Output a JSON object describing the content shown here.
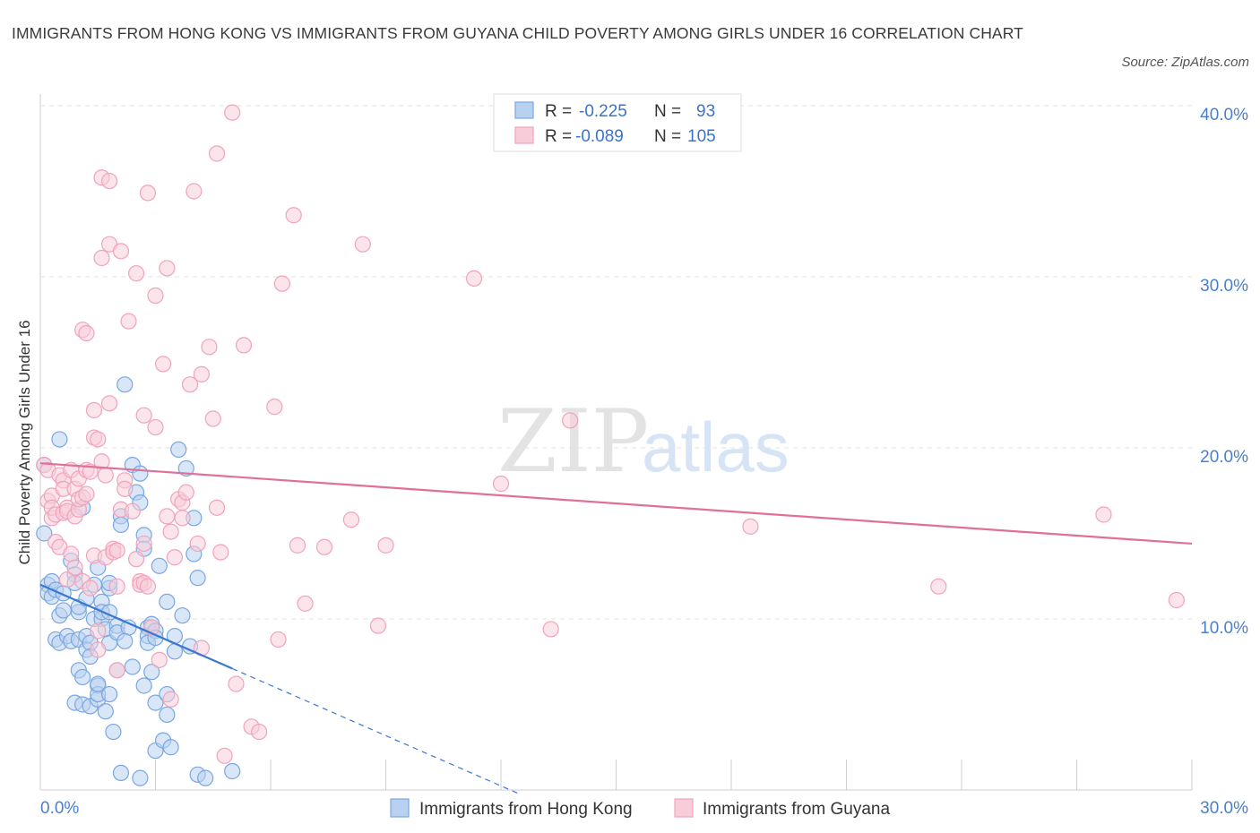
{
  "title": "IMMIGRANTS FROM HONG KONG VS IMMIGRANTS FROM GUYANA CHILD POVERTY AMONG GIRLS UNDER 16 CORRELATION CHART",
  "source": "Source: ZipAtlas.com",
  "watermark": {
    "zip": "ZIP",
    "atlas": "atlas"
  },
  "chart_data": {
    "type": "scatter",
    "title": "IMMIGRANTS FROM HONG KONG VS IMMIGRANTS FROM GUYANA CHILD POVERTY AMONG GIRLS UNDER 16 CORRELATION CHART",
    "xlabel": "",
    "ylabel": "Child Poverty Among Girls Under 16",
    "xlim": [
      0,
      30
    ],
    "ylim": [
      0,
      40
    ],
    "x_tick_labels": [
      {
        "value": 0,
        "label": "0.0%"
      },
      {
        "value": 30,
        "label": "30.0%"
      }
    ],
    "y_tick_labels": [
      {
        "value": 10,
        "label": "10.0%"
      },
      {
        "value": 20,
        "label": "20.0%"
      },
      {
        "value": 30,
        "label": "30.0%"
      },
      {
        "value": 40,
        "label": "40.0%"
      }
    ],
    "grid": true,
    "legend_placement": "bottom",
    "stats_box": [
      {
        "r_label": "R =",
        "r_value": "-0.225",
        "n_label": "N =",
        "n_value": "93"
      },
      {
        "r_label": "R =",
        "r_value": "-0.089",
        "n_label": "N =",
        "n_value": "105"
      }
    ],
    "series": [
      {
        "name": "Immigrants from Hong Kong",
        "color": "#7aa7e0",
        "fill": "#b9d1f1",
        "line_color": "#3a78d0",
        "trend": {
          "x0": 0,
          "y0": 12.0,
          "x1": 5.0,
          "y1": 7.1,
          "dash_to_x": 12.5
        },
        "points": [
          [
            0.1,
            19.0
          ],
          [
            0.1,
            15.0
          ],
          [
            0.2,
            12.0
          ],
          [
            0.2,
            11.5
          ],
          [
            0.3,
            11.3
          ],
          [
            0.3,
            12.2
          ],
          [
            0.4,
            8.8
          ],
          [
            0.4,
            11.7
          ],
          [
            0.5,
            20.5
          ],
          [
            0.5,
            10.2
          ],
          [
            0.6,
            10.5
          ],
          [
            0.6,
            11.5
          ],
          [
            0.5,
            8.6
          ],
          [
            0.7,
            9.0
          ],
          [
            0.8,
            13.4
          ],
          [
            0.8,
            8.7
          ],
          [
            0.9,
            12.6
          ],
          [
            0.9,
            12.1
          ],
          [
            1.0,
            10.4
          ],
          [
            1.0,
            10.7
          ],
          [
            0.9,
            5.1
          ],
          [
            1.0,
            7.0
          ],
          [
            1.0,
            8.8
          ],
          [
            1.1,
            16.5
          ],
          [
            1.2,
            11.2
          ],
          [
            1.2,
            9.0
          ],
          [
            1.1,
            6.6
          ],
          [
            1.1,
            5.0
          ],
          [
            1.2,
            8.2
          ],
          [
            1.3,
            8.6
          ],
          [
            1.3,
            7.8
          ],
          [
            1.3,
            4.9
          ],
          [
            1.4,
            10.0
          ],
          [
            1.4,
            12.0
          ],
          [
            1.5,
            13.0
          ],
          [
            1.5,
            6.1
          ],
          [
            1.5,
            5.3
          ],
          [
            1.5,
            5.6
          ],
          [
            1.5,
            6.2
          ],
          [
            1.6,
            10.0
          ],
          [
            1.6,
            11.0
          ],
          [
            1.6,
            10.4
          ],
          [
            1.7,
            9.4
          ],
          [
            1.7,
            4.6
          ],
          [
            1.8,
            10.4
          ],
          [
            1.8,
            11.8
          ],
          [
            1.8,
            12.1
          ],
          [
            1.8,
            8.6
          ],
          [
            1.8,
            5.6
          ],
          [
            1.9,
            3.4
          ],
          [
            2.0,
            9.6
          ],
          [
            2.0,
            9.2
          ],
          [
            2.0,
            7.0
          ],
          [
            2.1,
            16.0
          ],
          [
            2.1,
            15.5
          ],
          [
            2.1,
            1.0
          ],
          [
            2.2,
            23.7
          ],
          [
            2.3,
            9.5
          ],
          [
            2.2,
            8.7
          ],
          [
            2.4,
            7.2
          ],
          [
            2.4,
            19.0
          ],
          [
            2.5,
            17.4
          ],
          [
            2.6,
            16.8
          ],
          [
            2.6,
            18.5
          ],
          [
            2.6,
            0.7
          ],
          [
            2.7,
            14.9
          ],
          [
            2.7,
            14.1
          ],
          [
            2.7,
            6.1
          ],
          [
            2.8,
            9.5
          ],
          [
            2.8,
            9.0
          ],
          [
            2.8,
            8.6
          ],
          [
            2.9,
            9.7
          ],
          [
            2.9,
            6.9
          ],
          [
            3.0,
            9.3
          ],
          [
            3.0,
            5.1
          ],
          [
            3.0,
            8.9
          ],
          [
            3.0,
            2.3
          ],
          [
            3.1,
            13.1
          ],
          [
            3.2,
            2.9
          ],
          [
            3.3,
            11.0
          ],
          [
            3.3,
            5.6
          ],
          [
            3.3,
            4.4
          ],
          [
            3.4,
            2.5
          ],
          [
            3.5,
            8.1
          ],
          [
            3.5,
            9.0
          ],
          [
            3.6,
            19.9
          ],
          [
            3.7,
            10.2
          ],
          [
            3.8,
            18.8
          ],
          [
            3.9,
            8.4
          ],
          [
            4.0,
            15.9
          ],
          [
            4.0,
            13.8
          ],
          [
            4.1,
            12.4
          ],
          [
            4.1,
            0.9
          ],
          [
            4.3,
            0.7
          ],
          [
            5.0,
            1.1
          ]
        ]
      },
      {
        "name": "Immigrants from Guyana",
        "color": "#f0a3bc",
        "fill": "#f8cdd9",
        "line_color": "#e0709a",
        "trend": {
          "x0": 0,
          "y0": 19.1,
          "x1": 30,
          "y1": 14.4
        },
        "points": [
          [
            0.1,
            19.0
          ],
          [
            0.2,
            18.7
          ],
          [
            0.2,
            16.9
          ],
          [
            0.3,
            17.2
          ],
          [
            0.3,
            15.9
          ],
          [
            0.3,
            16.5
          ],
          [
            0.4,
            16.1
          ],
          [
            0.4,
            14.5
          ],
          [
            0.5,
            14.2
          ],
          [
            0.5,
            18.4
          ],
          [
            0.6,
            18.1
          ],
          [
            0.6,
            17.6
          ],
          [
            0.6,
            16.2
          ],
          [
            0.7,
            16.5
          ],
          [
            0.7,
            16.3
          ],
          [
            0.7,
            12.3
          ],
          [
            0.8,
            18.7
          ],
          [
            0.8,
            13.8
          ],
          [
            0.9,
            17.6
          ],
          [
            0.9,
            16.0
          ],
          [
            0.9,
            13.0
          ],
          [
            1.0,
            18.2
          ],
          [
            1.0,
            16.4
          ],
          [
            1.0,
            17.0
          ],
          [
            1.1,
            17.1
          ],
          [
            1.1,
            26.9
          ],
          [
            1.1,
            12.2
          ],
          [
            1.2,
            26.7
          ],
          [
            1.2,
            18.7
          ],
          [
            1.2,
            17.3
          ],
          [
            1.3,
            18.6
          ],
          [
            1.3,
            11.8
          ],
          [
            1.4,
            22.2
          ],
          [
            1.4,
            20.6
          ],
          [
            1.4,
            13.7
          ],
          [
            1.5,
            20.5
          ],
          [
            1.5,
            9.3
          ],
          [
            1.5,
            8.2
          ],
          [
            1.6,
            19.2
          ],
          [
            1.6,
            35.8
          ],
          [
            1.6,
            31.1
          ],
          [
            1.7,
            18.4
          ],
          [
            1.7,
            13.6
          ],
          [
            1.8,
            35.6
          ],
          [
            1.8,
            22.6
          ],
          [
            1.8,
            31.9
          ],
          [
            1.9,
            14.1
          ],
          [
            1.9,
            13.9
          ],
          [
            2.0,
            11.9
          ],
          [
            2.0,
            7.0
          ],
          [
            2.0,
            14.0
          ],
          [
            2.1,
            31.5
          ],
          [
            2.1,
            16.4
          ],
          [
            2.2,
            18.1
          ],
          [
            2.2,
            17.6
          ],
          [
            2.3,
            27.4
          ],
          [
            2.4,
            16.3
          ],
          [
            2.5,
            30.2
          ],
          [
            2.5,
            13.5
          ],
          [
            2.6,
            12.2
          ],
          [
            2.6,
            12.0
          ],
          [
            2.7,
            12.1
          ],
          [
            2.7,
            21.9
          ],
          [
            2.7,
            14.4
          ],
          [
            2.8,
            34.9
          ],
          [
            2.8,
            11.9
          ],
          [
            2.9,
            9.5
          ],
          [
            3.0,
            21.2
          ],
          [
            3.0,
            28.9
          ],
          [
            3.1,
            7.6
          ],
          [
            3.2,
            24.9
          ],
          [
            3.3,
            30.5
          ],
          [
            3.3,
            16.0
          ],
          [
            3.4,
            15.1
          ],
          [
            3.4,
            5.3
          ],
          [
            3.5,
            13.6
          ],
          [
            3.6,
            17.0
          ],
          [
            3.7,
            16.8
          ],
          [
            3.7,
            15.9
          ],
          [
            3.8,
            17.4
          ],
          [
            3.9,
            23.7
          ],
          [
            4.0,
            35.0
          ],
          [
            4.1,
            14.4
          ],
          [
            4.2,
            24.3
          ],
          [
            4.2,
            8.3
          ],
          [
            4.4,
            25.9
          ],
          [
            4.5,
            21.7
          ],
          [
            4.6,
            37.2
          ],
          [
            4.6,
            16.5
          ],
          [
            4.7,
            13.9
          ],
          [
            4.8,
            2.0
          ],
          [
            5.0,
            39.6
          ],
          [
            5.1,
            6.2
          ],
          [
            5.3,
            26.0
          ],
          [
            5.5,
            3.7
          ],
          [
            5.7,
            3.4
          ],
          [
            6.1,
            22.4
          ],
          [
            6.2,
            8.8
          ],
          [
            6.3,
            29.6
          ],
          [
            6.6,
            33.6
          ],
          [
            6.7,
            14.3
          ],
          [
            6.9,
            10.9
          ],
          [
            7.4,
            14.2
          ],
          [
            8.1,
            15.8
          ],
          [
            8.4,
            31.9
          ]
        ]
      }
    ]
  },
  "extra_guyana_points": [
    [
      9.0,
      14.3
    ],
    [
      8.8,
      9.6
    ],
    [
      11.3,
      29.9
    ],
    [
      12.0,
      17.9
    ],
    [
      13.3,
      9.4
    ],
    [
      13.8,
      21.6
    ],
    [
      18.5,
      15.4
    ],
    [
      23.4,
      11.9
    ],
    [
      27.7,
      16.1
    ],
    [
      29.6,
      11.1
    ]
  ]
}
